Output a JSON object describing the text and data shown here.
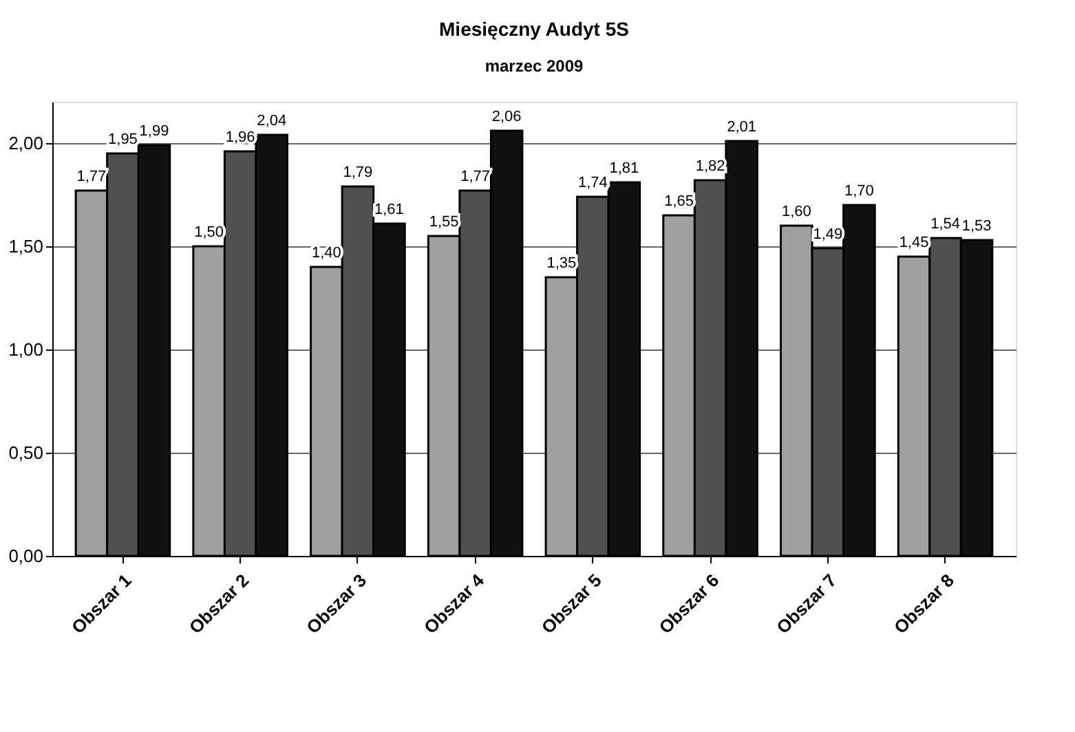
{
  "chart_data": {
    "type": "bar",
    "title": "Miesięczny Audyt 5S",
    "subtitle": "marzec 2009",
    "categories": [
      "Obszar 1",
      "Obszar 2",
      "Obszar 3",
      "Obszar 4",
      "Obszar 5",
      "Obszar 6",
      "Obszar 7",
      "Obszar 8"
    ],
    "series": [
      {
        "color": "#a0a0a0",
        "values": [
          1.77,
          1.5,
          1.4,
          1.55,
          1.35,
          1.65,
          1.6,
          1.45
        ],
        "value_labels": [
          "1,77",
          "1,50",
          "1,40",
          "1,55",
          "1,35",
          "1,65",
          "1,60",
          "1,45"
        ]
      },
      {
        "color": "#505050",
        "values": [
          1.95,
          1.96,
          1.79,
          1.77,
          1.74,
          1.82,
          1.49,
          1.54
        ],
        "value_labels": [
          "1,95",
          "1,96",
          "1,79",
          "1,77",
          "1,74",
          "1,82",
          "1,49",
          "1,54"
        ]
      },
      {
        "color": "#111111",
        "values": [
          1.99,
          2.04,
          1.61,
          2.06,
          1.81,
          2.01,
          1.7,
          1.53
        ],
        "value_labels": [
          "1,99",
          "2,04",
          "1,61",
          "2,06",
          "1,81",
          "2,01",
          "1,70",
          "1,53"
        ]
      }
    ],
    "ylim": [
      0,
      2.2
    ],
    "yticks": [
      {
        "value": 0,
        "label": "0,00"
      },
      {
        "value": 0.5,
        "label": "0,50"
      },
      {
        "value": 1,
        "label": "1,00"
      },
      {
        "value": 1.5,
        "label": "1,50"
      },
      {
        "value": 2,
        "label": "2,00"
      }
    ],
    "grid": "y",
    "legend": false
  }
}
